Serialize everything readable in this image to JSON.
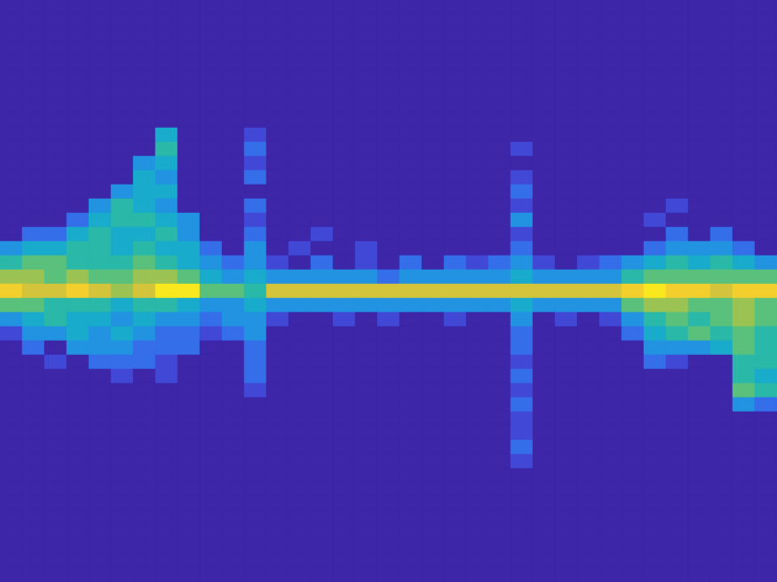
{
  "chart_data": {
    "type": "heatmap",
    "tick_labels": false,
    "zlim": [
      0,
      10
    ],
    "values": [
      [
        0,
        0,
        0,
        0,
        0,
        0,
        0,
        0,
        0,
        0,
        0,
        0,
        0,
        0,
        0,
        0,
        0,
        0,
        0,
        0,
        0,
        0,
        0,
        0,
        0,
        0,
        0,
        0,
        0,
        0,
        0,
        0,
        0,
        0,
        0
      ],
      [
        0,
        0,
        0,
        0,
        0,
        0,
        0,
        0,
        0,
        0,
        0,
        0,
        0,
        0,
        0,
        0,
        0,
        0,
        0,
        0,
        0,
        0,
        0,
        0,
        0,
        0,
        0,
        0,
        0,
        0,
        0,
        0,
        0,
        0,
        0
      ],
      [
        0,
        0,
        0,
        0,
        0,
        0,
        0,
        0,
        0,
        0,
        0,
        0,
        0,
        0,
        0,
        0,
        0,
        0,
        0,
        0,
        0,
        0,
        0,
        0,
        0,
        0,
        0,
        0,
        0,
        0,
        0,
        0,
        0,
        0,
        0
      ],
      [
        0,
        0,
        0,
        0,
        0,
        0,
        0,
        0,
        0,
        0,
        0,
        0,
        0,
        0,
        0,
        0,
        0,
        0,
        0,
        0,
        0,
        0,
        0,
        0,
        0,
        0,
        0,
        0,
        0,
        0,
        0,
        0,
        0,
        0,
        0
      ],
      [
        0,
        0,
        0,
        0,
        0,
        0,
        0,
        0,
        0,
        0,
        0,
        0,
        0,
        0,
        0,
        0,
        0,
        0,
        0,
        0,
        0,
        0,
        0,
        0,
        0,
        0,
        0,
        0,
        0,
        0,
        0,
        0,
        0,
        0,
        0
      ],
      [
        0,
        0,
        0,
        0,
        0,
        0,
        0,
        0,
        0,
        0,
        0,
        0,
        0,
        0,
        0,
        0,
        0,
        0,
        0,
        0,
        0,
        0,
        0,
        0,
        0,
        0,
        0,
        0,
        0,
        0,
        0,
        0,
        0,
        0,
        0
      ],
      [
        0,
        0,
        0,
        0,
        0,
        0,
        0,
        0,
        0,
        0,
        0,
        0,
        0,
        0,
        0,
        0,
        0,
        0,
        0,
        0,
        0,
        0,
        0,
        0,
        0,
        0,
        0,
        0,
        0,
        0,
        0,
        0,
        0,
        0,
        0
      ],
      [
        0,
        0,
        0,
        0,
        0,
        0,
        0,
        0,
        0,
        0,
        0,
        0,
        0,
        0,
        0,
        0,
        0,
        0,
        0,
        0,
        0,
        0,
        0,
        0,
        0,
        0,
        0,
        0,
        0,
        0,
        0,
        0,
        0,
        0,
        0
      ],
      [
        0,
        0,
        0,
        0,
        0,
        0,
        0,
        0,
        0,
        0,
        0,
        0,
        0,
        0,
        0,
        0,
        0,
        0,
        0,
        0,
        0,
        0,
        0,
        0,
        0,
        0,
        0,
        0,
        0,
        0,
        0,
        0,
        0,
        0,
        0
      ],
      [
        0,
        0,
        0,
        0,
        0,
        0,
        0,
        4,
        0,
        0,
        0,
        1,
        0,
        0,
        0,
        0,
        0,
        0,
        0,
        0,
        0,
        0,
        0,
        0,
        0,
        0,
        0,
        0,
        0,
        0,
        0,
        0,
        0,
        0,
        0
      ],
      [
        0,
        0,
        0,
        0,
        0,
        0,
        0,
        5,
        0,
        0,
        0,
        2,
        0,
        0,
        0,
        0,
        0,
        0,
        0,
        0,
        0,
        0,
        0,
        1,
        0,
        0,
        0,
        0,
        0,
        0,
        0,
        0,
        0,
        0,
        0
      ],
      [
        0,
        0,
        0,
        0,
        0,
        0,
        3,
        4,
        0,
        0,
        0,
        1,
        0,
        0,
        0,
        0,
        0,
        0,
        0,
        0,
        0,
        0,
        0,
        0,
        0,
        0,
        0,
        0,
        0,
        0,
        0,
        0,
        0,
        0,
        0
      ],
      [
        0,
        0,
        0,
        0,
        0,
        0,
        4,
        3,
        0,
        0,
        0,
        2,
        0,
        0,
        0,
        0,
        0,
        0,
        0,
        0,
        0,
        0,
        0,
        1,
        0,
        0,
        0,
        0,
        0,
        0,
        0,
        0,
        0,
        0,
        0
      ],
      [
        0,
        0,
        0,
        0,
        0,
        3,
        4,
        4,
        0,
        0,
        0,
        0,
        0,
        0,
        0,
        0,
        0,
        0,
        0,
        0,
        0,
        0,
        0,
        2,
        0,
        0,
        0,
        0,
        0,
        0,
        0,
        0,
        0,
        0,
        0
      ],
      [
        0,
        0,
        0,
        0,
        3,
        5,
        4,
        3,
        0,
        0,
        0,
        2,
        0,
        0,
        0,
        0,
        0,
        0,
        0,
        0,
        0,
        0,
        0,
        1,
        0,
        0,
        0,
        0,
        0,
        0,
        1,
        0,
        0,
        0,
        0
      ],
      [
        0,
        0,
        0,
        2,
        4,
        5,
        5,
        4,
        3,
        0,
        0,
        1,
        0,
        0,
        0,
        0,
        0,
        0,
        0,
        0,
        0,
        0,
        0,
        3,
        0,
        0,
        0,
        0,
        0,
        1,
        0,
        0,
        0,
        0,
        0
      ],
      [
        0,
        2,
        2,
        4,
        5,
        4,
        4,
        5,
        3,
        0,
        0,
        2,
        0,
        0,
        1,
        0,
        0,
        0,
        0,
        0,
        0,
        0,
        0,
        1,
        0,
        0,
        0,
        0,
        0,
        0,
        2,
        0,
        2,
        0,
        0
      ],
      [
        3,
        4,
        4,
        5,
        5,
        4,
        5,
        4,
        4,
        2,
        0,
        3,
        0,
        1,
        0,
        0,
        1,
        0,
        0,
        0,
        0,
        0,
        0,
        2,
        0,
        0,
        0,
        0,
        0,
        2,
        3,
        3,
        3,
        2,
        0
      ],
      [
        5,
        6,
        6,
        5,
        5,
        5,
        6,
        5,
        4,
        3,
        2,
        3,
        1,
        0,
        2,
        0,
        1,
        0,
        2,
        0,
        2,
        1,
        2,
        3,
        1,
        0,
        1,
        2,
        3,
        4,
        5,
        4,
        5,
        4,
        3
      ],
      [
        7,
        7,
        6,
        7,
        6,
        6,
        7,
        7,
        6,
        4,
        3,
        4,
        3,
        3,
        3,
        3,
        3,
        2,
        3,
        3,
        3,
        3,
        3,
        4,
        3,
        3,
        3,
        3,
        5,
        6,
        6,
        6,
        6,
        6,
        6
      ],
      [
        9,
        8,
        8,
        9,
        8,
        7,
        8,
        10,
        10,
        6,
        6,
        5,
        8,
        8,
        8,
        8,
        8,
        8,
        8,
        8,
        8,
        8,
        8,
        8,
        8,
        8,
        8,
        8,
        9,
        10,
        9,
        9,
        8,
        9,
        9
      ],
      [
        6,
        6,
        5,
        5,
        5,
        4,
        5,
        5,
        4,
        3,
        3,
        4,
        3,
        3,
        3,
        3,
        3,
        3,
        3,
        3,
        3,
        3,
        3,
        4,
        3,
        3,
        3,
        3,
        6,
        7,
        7,
        6,
        6,
        7,
        6
      ],
      [
        3,
        4,
        5,
        4,
        4,
        3,
        4,
        3,
        3,
        2,
        3,
        3,
        1,
        0,
        0,
        1,
        0,
        1,
        0,
        0,
        1,
        0,
        0,
        3,
        0,
        1,
        0,
        1,
        3,
        5,
        6,
        5,
        6,
        7,
        6
      ],
      [
        1,
        3,
        3,
        4,
        3,
        4,
        3,
        2,
        2,
        1,
        2,
        3,
        0,
        0,
        0,
        0,
        0,
        0,
        0,
        0,
        0,
        0,
        0,
        2,
        0,
        0,
        0,
        0,
        2,
        4,
        5,
        6,
        5,
        6,
        5
      ],
      [
        0,
        2,
        0,
        3,
        3,
        3,
        2,
        2,
        2,
        0,
        0,
        2,
        0,
        0,
        0,
        0,
        0,
        0,
        0,
        0,
        0,
        0,
        0,
        2,
        0,
        0,
        0,
        0,
        0,
        3,
        3,
        3,
        4,
        6,
        5
      ],
      [
        0,
        0,
        1,
        0,
        2,
        2,
        2,
        1,
        0,
        0,
        0,
        2,
        0,
        0,
        0,
        0,
        0,
        0,
        0,
        0,
        0,
        0,
        0,
        1,
        0,
        0,
        0,
        0,
        0,
        2,
        1,
        0,
        0,
        5,
        5
      ],
      [
        0,
        0,
        0,
        0,
        0,
        1,
        0,
        1,
        0,
        0,
        0,
        2,
        0,
        0,
        0,
        0,
        0,
        0,
        0,
        0,
        0,
        0,
        0,
        2,
        0,
        0,
        0,
        0,
        0,
        0,
        0,
        0,
        0,
        5,
        4
      ],
      [
        0,
        0,
        0,
        0,
        0,
        0,
        0,
        0,
        0,
        0,
        0,
        1,
        0,
        0,
        0,
        0,
        0,
        0,
        0,
        0,
        0,
        0,
        0,
        1,
        0,
        0,
        0,
        0,
        0,
        0,
        0,
        0,
        0,
        6,
        5
      ],
      [
        0,
        0,
        0,
        0,
        0,
        0,
        0,
        0,
        0,
        0,
        0,
        0,
        0,
        0,
        0,
        0,
        0,
        0,
        0,
        0,
        0,
        0,
        0,
        2,
        0,
        0,
        0,
        0,
        0,
        0,
        0,
        0,
        0,
        3,
        2
      ],
      [
        0,
        0,
        0,
        0,
        0,
        0,
        0,
        0,
        0,
        0,
        0,
        0,
        0,
        0,
        0,
        0,
        0,
        0,
        0,
        0,
        0,
        0,
        0,
        1,
        0,
        0,
        0,
        0,
        0,
        0,
        0,
        0,
        0,
        0,
        0
      ],
      [
        0,
        0,
        0,
        0,
        0,
        0,
        0,
        0,
        0,
        0,
        0,
        0,
        0,
        0,
        0,
        0,
        0,
        0,
        0,
        0,
        0,
        0,
        0,
        1,
        0,
        0,
        0,
        0,
        0,
        0,
        0,
        0,
        0,
        0,
        0
      ],
      [
        0,
        0,
        0,
        0,
        0,
        0,
        0,
        0,
        0,
        0,
        0,
        0,
        0,
        0,
        0,
        0,
        0,
        0,
        0,
        0,
        0,
        0,
        0,
        2,
        0,
        0,
        0,
        0,
        0,
        0,
        0,
        0,
        0,
        0,
        0
      ],
      [
        0,
        0,
        0,
        0,
        0,
        0,
        0,
        0,
        0,
        0,
        0,
        0,
        0,
        0,
        0,
        0,
        0,
        0,
        0,
        0,
        0,
        0,
        0,
        1,
        0,
        0,
        0,
        0,
        0,
        0,
        0,
        0,
        0,
        0,
        0
      ],
      [
        0,
        0,
        0,
        0,
        0,
        0,
        0,
        0,
        0,
        0,
        0,
        0,
        0,
        0,
        0,
        0,
        0,
        0,
        0,
        0,
        0,
        0,
        0,
        0,
        0,
        0,
        0,
        0,
        0,
        0,
        0,
        0,
        0,
        0,
        0
      ],
      [
        0,
        0,
        0,
        0,
        0,
        0,
        0,
        0,
        0,
        0,
        0,
        0,
        0,
        0,
        0,
        0,
        0,
        0,
        0,
        0,
        0,
        0,
        0,
        0,
        0,
        0,
        0,
        0,
        0,
        0,
        0,
        0,
        0,
        0,
        0
      ],
      [
        0,
        0,
        0,
        0,
        0,
        0,
        0,
        0,
        0,
        0,
        0,
        0,
        0,
        0,
        0,
        0,
        0,
        0,
        0,
        0,
        0,
        0,
        0,
        0,
        0,
        0,
        0,
        0,
        0,
        0,
        0,
        0,
        0,
        0,
        0
      ],
      [
        0,
        0,
        0,
        0,
        0,
        0,
        0,
        0,
        0,
        0,
        0,
        0,
        0,
        0,
        0,
        0,
        0,
        0,
        0,
        0,
        0,
        0,
        0,
        0,
        0,
        0,
        0,
        0,
        0,
        0,
        0,
        0,
        0,
        0,
        0
      ],
      [
        0,
        0,
        0,
        0,
        0,
        0,
        0,
        0,
        0,
        0,
        0,
        0,
        0,
        0,
        0,
        0,
        0,
        0,
        0,
        0,
        0,
        0,
        0,
        0,
        0,
        0,
        0,
        0,
        0,
        0,
        0,
        0,
        0,
        0,
        0
      ],
      [
        0,
        0,
        0,
        0,
        0,
        0,
        0,
        0,
        0,
        0,
        0,
        0,
        0,
        0,
        0,
        0,
        0,
        0,
        0,
        0,
        0,
        0,
        0,
        0,
        0,
        0,
        0,
        0,
        0,
        0,
        0,
        0,
        0,
        0,
        0
      ],
      [
        0,
        0,
        0,
        0,
        0,
        0,
        0,
        0,
        0,
        0,
        0,
        0,
        0,
        0,
        0,
        0,
        0,
        0,
        0,
        0,
        0,
        0,
        0,
        0,
        0,
        0,
        0,
        0,
        0,
        0,
        0,
        0,
        0,
        0,
        0
      ],
      [
        0,
        0,
        0,
        0,
        0,
        0,
        0,
        0,
        0,
        0,
        0,
        0,
        0,
        0,
        0,
        0,
        0,
        0,
        0,
        0,
        0,
        0,
        0,
        0,
        0,
        0,
        0,
        0,
        0,
        0,
        0,
        0,
        0,
        0,
        0
      ]
    ]
  }
}
